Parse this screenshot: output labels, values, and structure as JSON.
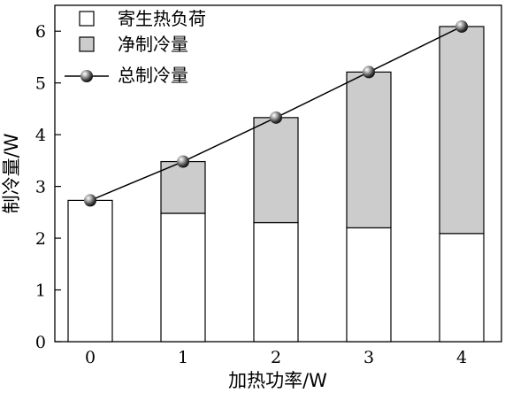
{
  "chart_data": {
    "type": "bar",
    "stacked": true,
    "categories": [
      "0",
      "1",
      "2",
      "3",
      "4"
    ],
    "series": [
      {
        "name": "寄生热负荷",
        "kind": "bar",
        "color": "#ffffff",
        "values": [
          2.73,
          2.48,
          2.3,
          2.2,
          2.09
        ]
      },
      {
        "name": "净制冷量",
        "kind": "bar",
        "color": "#cccccc",
        "values": [
          0.0,
          1.0,
          2.03,
          3.01,
          4.0
        ]
      },
      {
        "name": "总制冷量",
        "kind": "line",
        "marker": "sphere",
        "color": "#000000",
        "values": [
          2.73,
          3.48,
          4.33,
          5.21,
          6.09
        ]
      }
    ],
    "xlabel": "加热功率/W",
    "ylabel": "制冷量/W",
    "ylim": [
      0,
      6.5
    ],
    "yticks": [
      "0",
      "1",
      "2",
      "3",
      "4",
      "5",
      "6"
    ],
    "grid": false,
    "legend_position": "top-left"
  }
}
